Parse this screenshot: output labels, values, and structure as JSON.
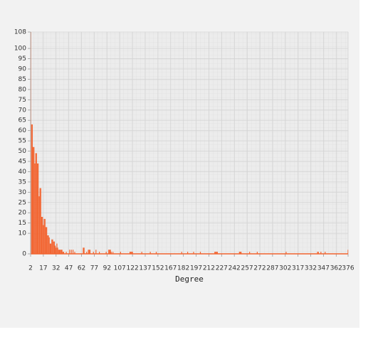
{
  "chart_data": {
    "type": "bar",
    "xlabel": "Degree",
    "color": "#f26430",
    "grid": true,
    "xlim": [
      2,
      376
    ],
    "ylim": [
      0,
      108
    ],
    "xticks": [
      2,
      17,
      32,
      47,
      62,
      77,
      92,
      107,
      122,
      137,
      152,
      167,
      182,
      197,
      212,
      227,
      242,
      257,
      272,
      287,
      302,
      317,
      332,
      347,
      362,
      376
    ],
    "yticks": [
      0,
      10,
      15,
      20,
      25,
      30,
      35,
      40,
      45,
      50,
      55,
      60,
      65,
      70,
      75,
      80,
      85,
      90,
      95,
      100,
      108
    ],
    "x": [
      2,
      3,
      4,
      5,
      6,
      7,
      8,
      9,
      10,
      11,
      12,
      13,
      14,
      15,
      16,
      17,
      18,
      19,
      20,
      21,
      22,
      23,
      24,
      25,
      26,
      27,
      28,
      29,
      30,
      31,
      32,
      33,
      34,
      35,
      36,
      37,
      38,
      39,
      40,
      41,
      42,
      43,
      44,
      45,
      46,
      47,
      48,
      49,
      50,
      51,
      52,
      53,
      54,
      55,
      56,
      57,
      58,
      59,
      60,
      61,
      62,
      63,
      64,
      65,
      66,
      67,
      68,
      69,
      70,
      71,
      72,
      73,
      74,
      75,
      76,
      77,
      78,
      79,
      80,
      81,
      82,
      83,
      84,
      85,
      86,
      87,
      88,
      89,
      90,
      91,
      92,
      93,
      94,
      95,
      96,
      97,
      98,
      99,
      100,
      101,
      102,
      103,
      104,
      105,
      106,
      107,
      108,
      109,
      110,
      111,
      112,
      113,
      114,
      115,
      116,
      117,
      118,
      119,
      120,
      121,
      122,
      123,
      124,
      125,
      126,
      127,
      128,
      129,
      130,
      131,
      132,
      133,
      134,
      135,
      136,
      137,
      138,
      139,
      140,
      141,
      142,
      143,
      144,
      145,
      146,
      147,
      148,
      149,
      150,
      151,
      152,
      153,
      154,
      155,
      156,
      157,
      158,
      159,
      160,
      161,
      162,
      163,
      164,
      165,
      166,
      167,
      168,
      169,
      170,
      171,
      172,
      173,
      174,
      175,
      176,
      177,
      178,
      179,
      180,
      181,
      182,
      183,
      184,
      185,
      186,
      187,
      188,
      189,
      190,
      191,
      192,
      193,
      194,
      195,
      196,
      197,
      198,
      199,
      200,
      201,
      202,
      203,
      204,
      205,
      206,
      207,
      208,
      209,
      210,
      211,
      212,
      213,
      214,
      215,
      216,
      217,
      218,
      219,
      220,
      221,
      222,
      223,
      224,
      225,
      226,
      227,
      228,
      229,
      230,
      231,
      232,
      233,
      234,
      235,
      236,
      237,
      238,
      239,
      240,
      241,
      242,
      243,
      244,
      245,
      246,
      247,
      248,
      249,
      250,
      251,
      252,
      253,
      254,
      255,
      256,
      257,
      258,
      259,
      260,
      261,
      262,
      263,
      264,
      265,
      266,
      267,
      268,
      269,
      270,
      271,
      272,
      273,
      274,
      275,
      276,
      277,
      278,
      279,
      280,
      281,
      282,
      283,
      284,
      285,
      286,
      287,
      288,
      289,
      290,
      291,
      292,
      293,
      294,
      295,
      296,
      297,
      298,
      299,
      300,
      301,
      302,
      303,
      304,
      305,
      306,
      307,
      308,
      309,
      310,
      311,
      312,
      313,
      314,
      315,
      316,
      317,
      318,
      319,
      320,
      321,
      322,
      323,
      324,
      325,
      326,
      327,
      328,
      329,
      330,
      331,
      332,
      333,
      334,
      335,
      336,
      337,
      338,
      339,
      340,
      341,
      342,
      343,
      344,
      345,
      346,
      347,
      348,
      349,
      350,
      351,
      352,
      353,
      354,
      355,
      356,
      357,
      358,
      359,
      360,
      361,
      362,
      363,
      364,
      365,
      366,
      367,
      368,
      369,
      370,
      371,
      372,
      373,
      374,
      375,
      376
    ],
    "values": [
      108,
      63,
      63,
      52,
      52,
      44,
      49,
      49,
      44,
      44,
      28,
      32,
      32,
      18,
      18,
      14,
      17,
      17,
      13,
      13,
      9,
      9,
      8,
      5,
      5,
      7,
      7,
      6,
      6,
      4,
      3,
      5,
      3,
      2,
      2,
      2,
      2,
      2,
      1,
      1,
      0,
      0,
      1,
      0,
      0,
      0,
      2,
      0,
      2,
      0,
      2,
      0,
      1,
      0,
      0,
      0,
      0,
      0,
      0,
      0,
      0,
      0,
      3,
      3,
      0,
      0,
      1,
      0,
      2,
      2,
      2,
      0,
      0,
      0,
      1,
      0,
      0,
      2,
      0,
      0,
      0,
      1,
      0,
      0,
      0,
      0,
      0,
      0,
      0,
      1,
      0,
      0,
      2,
      2,
      2,
      1,
      0,
      1,
      0,
      0,
      0,
      0,
      0,
      0,
      0,
      0,
      1,
      0,
      0,
      0,
      0,
      0,
      0,
      0,
      0,
      0,
      0,
      1,
      1,
      1,
      1,
      0,
      0,
      0,
      0,
      0,
      0,
      0,
      0,
      0,
      0,
      1,
      0,
      0,
      0,
      0,
      0,
      0,
      0,
      0,
      0,
      1,
      0,
      0,
      0,
      0,
      0,
      0,
      1,
      0,
      0,
      0,
      0,
      0,
      0,
      0,
      0,
      0,
      0,
      0,
      0,
      0,
      0,
      0,
      0,
      0,
      0,
      0,
      0,
      0,
      0,
      0,
      0,
      0,
      0,
      0,
      0,
      0,
      1,
      0,
      0,
      0,
      0,
      0,
      0,
      1,
      0,
      0,
      0,
      0,
      0,
      0,
      1,
      0,
      0,
      0,
      0,
      0,
      0,
      0,
      1,
      0,
      0,
      0,
      0,
      0,
      0,
      0,
      0,
      0,
      0,
      0,
      0,
      0,
      0,
      0,
      0,
      1,
      1,
      1,
      1,
      0,
      0,
      0,
      0,
      0,
      0,
      0,
      0,
      0,
      0,
      0,
      0,
      0,
      0,
      0,
      0,
      0,
      0,
      0,
      0,
      0,
      0,
      0,
      0,
      0,
      1,
      1,
      1,
      0,
      0,
      0,
      0,
      0,
      0,
      0,
      0,
      0,
      1,
      0,
      0,
      0,
      0,
      0,
      0,
      0,
      0,
      1,
      0,
      0,
      0,
      0,
      0,
      0,
      0,
      0,
      0,
      0,
      0,
      0,
      0,
      0,
      0,
      0,
      0,
      0,
      0,
      0,
      0,
      0,
      0,
      0,
      0,
      0,
      0,
      0,
      0,
      0,
      0,
      0,
      0,
      1,
      0,
      0,
      0,
      0,
      0,
      0,
      0,
      0,
      0,
      0,
      0,
      0,
      0,
      0,
      0,
      0,
      0,
      0,
      0,
      0,
      0,
      0,
      0,
      0,
      0,
      0,
      0,
      0,
      0,
      0,
      0,
      0,
      0,
      0,
      0,
      0,
      1,
      1,
      0,
      0,
      1,
      0,
      0,
      0,
      0,
      1,
      0,
      0,
      0,
      0,
      0,
      0,
      0,
      0,
      0,
      0,
      0,
      0,
      0,
      0,
      0,
      0,
      0,
      0,
      0,
      0,
      0,
      0,
      0,
      0,
      0,
      0,
      2
    ]
  }
}
